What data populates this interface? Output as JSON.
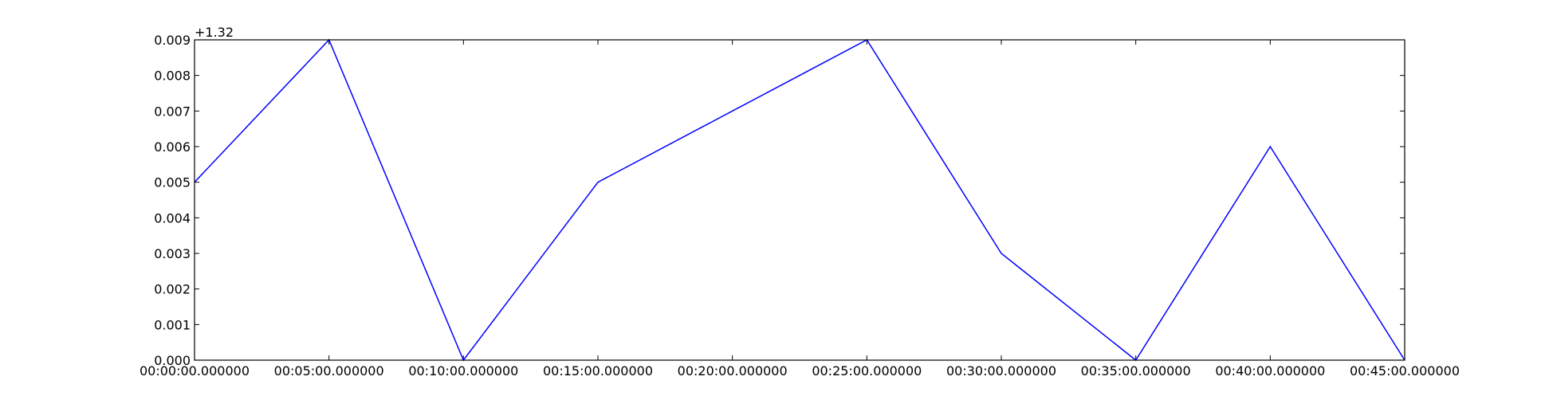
{
  "chart_data": {
    "type": "line",
    "title": "",
    "xlabel": "",
    "ylabel": "",
    "y_offset_label": "+1.32",
    "x": [
      "00:00:00.000000",
      "00:05:00.000000",
      "00:10:00.000000",
      "00:15:00.000000",
      "00:20:00.000000",
      "00:25:00.000000",
      "00:30:00.000000",
      "00:35:00.000000",
      "00:40:00.000000",
      "00:45:00.000000"
    ],
    "x_ticks": [
      "00:00:00.000000",
      "00:05:00.000000",
      "00:10:00.000000",
      "00:15:00.000000",
      "00:20:00.000000",
      "00:25:00.000000",
      "00:30:00.000000",
      "00:35:00.000000",
      "00:40:00.000000",
      "00:45:00.000000"
    ],
    "y_ticks": [
      "0.000",
      "0.001",
      "0.002",
      "0.003",
      "0.004",
      "0.005",
      "0.006",
      "0.007",
      "0.008",
      "0.009"
    ],
    "ylim": [
      1.32,
      1.329
    ],
    "series": [
      {
        "color": "#0000ff",
        "values": [
          1.325,
          1.329,
          1.32,
          1.325,
          1.327,
          1.329,
          1.323,
          1.32,
          1.326,
          1.32
        ]
      }
    ],
    "grid": false,
    "legend": "none"
  }
}
